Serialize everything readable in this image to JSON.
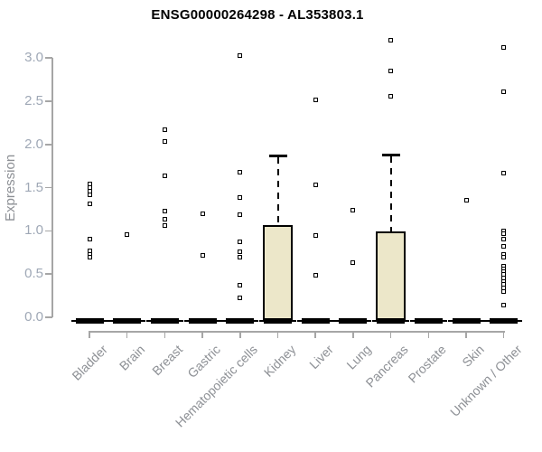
{
  "chart_data": {
    "type": "boxplot",
    "title": "ENSG00000264298 - AL353803.1",
    "ylabel": "Expression",
    "xlabel": "",
    "ylim": [
      0.0,
      3.3
    ],
    "yticks": [
      0.0,
      0.5,
      1.0,
      1.5,
      2.0,
      2.5,
      3.0
    ],
    "grid": false,
    "legend": "none",
    "marker_shape": "open-square",
    "colors": {
      "box_fill": "#ece7c9",
      "box_border": "#000000",
      "median_line": "#000000",
      "marker": "#000000",
      "axis_line": "#a6a6a6",
      "tick_text": "#9fa8b6",
      "label_text": "#8d9095",
      "title_text": "#000000"
    },
    "categories": [
      "Bladder",
      "Brain",
      "Breast",
      "Gastric",
      "Hematopoietic cells",
      "Kidney",
      "Liver",
      "Lung",
      "Pancreas",
      "Prostate",
      "Skin",
      "Unknown / Other"
    ],
    "series": [
      {
        "label": "Bladder",
        "median": 0.0,
        "q1": 0.0,
        "q3": 0.0,
        "whisker_high": 0.0,
        "points": [
          1.54,
          1.5,
          1.46,
          1.42,
          1.31,
          0.9,
          0.77,
          0.73,
          0.7
        ]
      },
      {
        "label": "Brain",
        "median": 0.0,
        "q1": 0.0,
        "q3": 0.0,
        "whisker_high": 0.0,
        "points": [
          0.96
        ]
      },
      {
        "label": "Breast",
        "median": 0.0,
        "q1": 0.0,
        "q3": 0.0,
        "whisker_high": 0.0,
        "points": [
          2.17,
          2.03,
          1.64,
          1.23,
          1.13,
          1.06
        ]
      },
      {
        "label": "Gastric",
        "median": 0.0,
        "q1": 0.0,
        "q3": 0.0,
        "whisker_high": 0.0,
        "points": [
          1.2,
          0.72
        ]
      },
      {
        "label": "Hematopoietic cells",
        "median": 0.0,
        "q1": 0.0,
        "q3": 0.0,
        "whisker_high": 0.0,
        "points": [
          3.03,
          1.68,
          1.39,
          1.19,
          0.87,
          0.76,
          0.7,
          0.37,
          0.22
        ]
      },
      {
        "label": "Kidney",
        "median": 0.0,
        "q1": 0.0,
        "q3": 1.07,
        "whisker_high": 1.87,
        "points": []
      },
      {
        "label": "Liver",
        "median": 0.0,
        "q1": 0.0,
        "q3": 0.0,
        "whisker_high": 0.0,
        "points": [
          2.52,
          1.53,
          0.95,
          0.49
        ]
      },
      {
        "label": "Lung",
        "median": 0.0,
        "q1": 0.0,
        "q3": 0.0,
        "whisker_high": 0.0,
        "points": [
          1.24,
          0.63
        ]
      },
      {
        "label": "Pancreas",
        "median": 0.0,
        "q1": 0.0,
        "q3": 0.99,
        "whisker_high": 1.88,
        "points": [
          3.21,
          2.85,
          2.56
        ]
      },
      {
        "label": "Prostate",
        "median": 0.0,
        "q1": 0.0,
        "q3": 0.0,
        "whisker_high": 0.0,
        "points": []
      },
      {
        "label": "Skin",
        "median": 0.0,
        "q1": 0.0,
        "q3": 0.0,
        "whisker_high": 0.0,
        "points": [
          1.35
        ]
      },
      {
        "label": "Unknown / Other",
        "median": 0.0,
        "q1": 0.0,
        "q3": 0.0,
        "whisker_high": 0.0,
        "points": [
          3.12,
          2.61,
          1.67,
          1.0,
          0.97,
          0.91,
          0.82,
          0.73,
          0.7,
          0.59,
          0.56,
          0.53,
          0.5,
          0.45,
          0.41,
          0.38,
          0.34,
          0.3,
          0.14
        ]
      }
    ]
  }
}
